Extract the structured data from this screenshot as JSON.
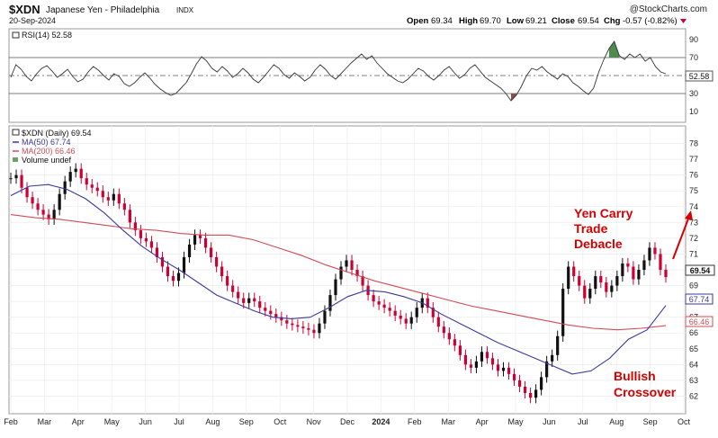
{
  "header": {
    "symbol": "$XDN",
    "name": "Japanese Yen - Philadelphia",
    "exchange": "INDX",
    "watermark": "@StockCharts.com",
    "date": "20-Sep-2024",
    "open_label": "Open",
    "open": "69.34",
    "high_label": "High",
    "high": "69.70",
    "low_label": "Low",
    "low": "69.21",
    "close_label": "Close",
    "close": "69.54",
    "chg_label": "Chg",
    "chg": "-0.57 (-0.82%)"
  },
  "chart_data": [
    {
      "type": "line",
      "panel": "indicator",
      "legend": "RSI(14) 52.58",
      "ylim": [
        0,
        100
      ],
      "yticks": [
        10,
        30,
        50,
        70,
        90
      ],
      "reference_lines": [
        30,
        50,
        70
      ],
      "last_value_label": "52.58",
      "last_value": 52.58,
      "series": [
        {
          "key": "rsi",
          "color": "#333333",
          "values": [
            48,
            62,
            57,
            49,
            44,
            52,
            58,
            61,
            55,
            48,
            52,
            57,
            49,
            43,
            46,
            54,
            60,
            56,
            50,
            45,
            52,
            49,
            41,
            38,
            42,
            48,
            53,
            47,
            40,
            35,
            31,
            28,
            30,
            36,
            42,
            52,
            63,
            71,
            66,
            58,
            54,
            60,
            55,
            48,
            52,
            58,
            53,
            46,
            42,
            48,
            55,
            62,
            58,
            51,
            47,
            53,
            49,
            44,
            48,
            56,
            62,
            57,
            50,
            46,
            52,
            58,
            64,
            69,
            74,
            68,
            72,
            64,
            58,
            52,
            48,
            44,
            42,
            46,
            52,
            58,
            55,
            49,
            45,
            50,
            56,
            60,
            53,
            47,
            51,
            58,
            62,
            55,
            48,
            44,
            40,
            36,
            30,
            22,
            28,
            38,
            50,
            58,
            56,
            60,
            54,
            50,
            46,
            52,
            49,
            42,
            38,
            33,
            29,
            36,
            54,
            68,
            80,
            88,
            72,
            68,
            74,
            70,
            74,
            66,
            70,
            60,
            54,
            52
          ]
        }
      ]
    },
    {
      "type": "line",
      "panel": "price",
      "legend": [
        "$XDN (Daily) 69.54",
        "MA(50) 67.74",
        "MA(200) 66.46",
        "Volume undef"
      ],
      "ylim": [
        61,
        79
      ],
      "yticks": [
        62,
        63,
        64,
        65,
        66,
        67,
        68,
        69,
        70,
        71,
        72,
        73,
        74,
        75,
        76,
        77,
        78
      ],
      "x_labels": [
        "Feb",
        "Mar",
        "Apr",
        "May",
        "Jun",
        "Jul",
        "Aug",
        "Sep",
        "Oct",
        "Nov",
        "Dec",
        "2024",
        "Feb",
        "Mar",
        "Apr",
        "May",
        "Jun",
        "Jul",
        "Aug",
        "Sep",
        "Oct"
      ],
      "last_value_labels": {
        "close": "69.54",
        "ma50": "67.74",
        "ma200": "66.46"
      },
      "series": [
        {
          "key": "price",
          "name": "$XDN (Daily) 69.54",
          "color": "#cc0033",
          "values": [
            75.8,
            76.0,
            75.2,
            74.6,
            74.2,
            73.8,
            73.5,
            73.2,
            73.8,
            74.8,
            75.6,
            76.2,
            76.4,
            75.8,
            75.4,
            75.2,
            75.0,
            74.6,
            74.4,
            74.8,
            74.2,
            73.8,
            73.0,
            72.5,
            72.0,
            71.8,
            71.4,
            70.8,
            70.2,
            69.6,
            69.3,
            69.8,
            70.8,
            71.6,
            72.2,
            72.0,
            71.4,
            70.8,
            70.2,
            69.6,
            69.0,
            68.6,
            68.2,
            67.9,
            68.2,
            68.0,
            67.6,
            67.4,
            67.2,
            67.0,
            66.8,
            66.6,
            66.5,
            66.4,
            66.3,
            66.2,
            66.0,
            66.6,
            67.4,
            68.4,
            69.4,
            70.2,
            70.6,
            70.0,
            69.6,
            69.0,
            68.4,
            68.0,
            67.8,
            67.6,
            67.4,
            67.1,
            66.9,
            66.6,
            67.0,
            67.6,
            68.2,
            67.6,
            67.0,
            66.4,
            66.0,
            65.6,
            65.2,
            64.6,
            64.0,
            63.8,
            64.2,
            64.8,
            64.4,
            64.0,
            63.6,
            63.8,
            63.4,
            63.0,
            62.6,
            62.2,
            61.9,
            62.4,
            63.2,
            64.2,
            64.6,
            65.8,
            68.8,
            70.2,
            69.6,
            69.0,
            68.2,
            68.8,
            69.6,
            69.2,
            68.6,
            69.0,
            69.6,
            70.4,
            70.2,
            69.4,
            70.0,
            70.6,
            71.4,
            71.0,
            70.0,
            69.54
          ]
        },
        {
          "key": "ma50",
          "name": "MA(50) 67.74",
          "color": "#3a3a9a",
          "values": [
            74.7,
            75.3,
            75.4,
            75.1,
            74.5,
            73.6,
            72.5,
            71.5,
            70.7,
            70.0,
            69.2,
            68.4,
            67.9,
            67.4,
            67.0,
            66.9,
            67.0,
            67.6,
            68.3,
            68.7,
            68.6,
            68.3,
            67.9,
            67.2,
            66.6,
            66.0,
            65.4,
            64.9,
            64.4,
            63.9,
            63.4,
            63.6,
            64.4,
            65.6,
            66.2,
            67.74
          ]
        },
        {
          "key": "ma200",
          "name": "MA(200) 66.46",
          "color": "#d04b55",
          "values": [
            73.5,
            73.3,
            73.2,
            73.0,
            72.8,
            72.6,
            72.5,
            72.3,
            72.2,
            72.2,
            71.9,
            71.4,
            70.9,
            70.3,
            69.8,
            69.3,
            68.9,
            68.5,
            68.1,
            67.7,
            67.4,
            67.1,
            66.8,
            66.5,
            66.3,
            66.2,
            66.3,
            66.46
          ]
        }
      ]
    }
  ],
  "annotations": {
    "yen_carry": [
      "Yen Carry",
      "Trade",
      "Debacle"
    ],
    "bullish": [
      "Bullish",
      "Crossover"
    ]
  }
}
